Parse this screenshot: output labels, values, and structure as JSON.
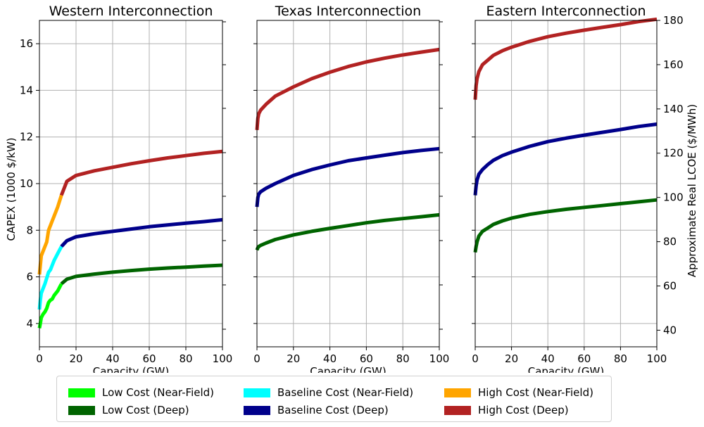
{
  "chart_data": [
    {
      "type": "line",
      "title": "Western Interconnection",
      "xlabel": "Capacity (GW)",
      "ylabel": "CAPEX (1000 $/kW)",
      "xlim": [
        0,
        100
      ],
      "ylim": [
        3,
        17
      ],
      "xticks": [
        "0",
        "20",
        "40",
        "60",
        "80",
        "100"
      ],
      "yticks": [
        "4",
        "6",
        "8",
        "10",
        "12",
        "14",
        "16"
      ],
      "grid": true,
      "series": [
        {
          "name": "Low Cost (Deep)",
          "color": "#006400",
          "x": [
            12,
            15,
            20,
            30,
            40,
            50,
            60,
            70,
            80,
            90,
            100
          ],
          "y": [
            5.7,
            5.9,
            6.02,
            6.12,
            6.2,
            6.27,
            6.33,
            6.38,
            6.42,
            6.46,
            6.5
          ]
        },
        {
          "name": "Baseline Cost (Deep)",
          "color": "#00008b",
          "x": [
            12,
            15,
            20,
            30,
            40,
            50,
            60,
            70,
            80,
            90,
            100
          ],
          "y": [
            7.3,
            7.55,
            7.72,
            7.85,
            7.95,
            8.05,
            8.15,
            8.23,
            8.3,
            8.37,
            8.45
          ]
        },
        {
          "name": "High Cost (Deep)",
          "color": "#b22222",
          "x": [
            12,
            15,
            20,
            30,
            40,
            50,
            60,
            70,
            80,
            90,
            100
          ],
          "y": [
            9.5,
            10.1,
            10.35,
            10.55,
            10.7,
            10.85,
            10.98,
            11.1,
            11.2,
            11.3,
            11.38
          ]
        },
        {
          "name": "Low Cost (Near-Field)",
          "color": "#00ff00",
          "x": [
            0,
            0.5,
            1,
            2,
            3,
            4,
            5,
            6,
            7,
            8,
            10,
            12
          ],
          "y": [
            3.8,
            4.0,
            4.25,
            4.4,
            4.5,
            4.65,
            4.9,
            5.0,
            5.05,
            5.2,
            5.4,
            5.7
          ]
        },
        {
          "name": "Baseline Cost (Near-Field)",
          "color": "#00ffff",
          "x": [
            0,
            0.5,
            1,
            2,
            3,
            4,
            5,
            6,
            7,
            8,
            10,
            12
          ],
          "y": [
            4.6,
            5.0,
            5.3,
            5.5,
            5.7,
            5.95,
            6.2,
            6.3,
            6.5,
            6.7,
            7.0,
            7.3
          ]
        },
        {
          "name": "High Cost (Near-Field)",
          "color": "#ffa500",
          "x": [
            0,
            0.5,
            1,
            2,
            3,
            4,
            5,
            6,
            7,
            8,
            10,
            12
          ],
          "y": [
            6.1,
            6.5,
            6.9,
            7.1,
            7.3,
            7.5,
            8.0,
            8.2,
            8.4,
            8.6,
            9.0,
            9.5
          ]
        }
      ]
    },
    {
      "type": "line",
      "title": "Texas Interconnection",
      "xlabel": "Capacity (GW)",
      "xlim": [
        0,
        100
      ],
      "ylim": [
        3,
        17
      ],
      "xticks": [
        "0",
        "20",
        "40",
        "60",
        "80",
        "100"
      ],
      "grid": true,
      "series": [
        {
          "name": "Low Cost (Deep)",
          "color": "#006400",
          "x": [
            0,
            0.5,
            1,
            2,
            5,
            10,
            20,
            30,
            40,
            50,
            60,
            70,
            80,
            90,
            100
          ],
          "y": [
            7.15,
            7.25,
            7.3,
            7.35,
            7.45,
            7.6,
            7.8,
            7.95,
            8.08,
            8.2,
            8.32,
            8.42,
            8.5,
            8.58,
            8.66
          ]
        },
        {
          "name": "Baseline Cost (Deep)",
          "color": "#00008b",
          "x": [
            0,
            0.5,
            1,
            2,
            5,
            10,
            20,
            30,
            40,
            50,
            60,
            70,
            80,
            90,
            100
          ],
          "y": [
            9.0,
            9.4,
            9.55,
            9.65,
            9.8,
            10.0,
            10.35,
            10.6,
            10.8,
            10.98,
            11.1,
            11.22,
            11.33,
            11.42,
            11.5
          ]
        },
        {
          "name": "High Cost (Deep)",
          "color": "#b22222",
          "x": [
            0,
            0.5,
            1,
            2,
            5,
            10,
            20,
            30,
            40,
            50,
            60,
            70,
            80,
            90,
            100
          ],
          "y": [
            12.3,
            12.8,
            13.0,
            13.15,
            13.4,
            13.75,
            14.15,
            14.5,
            14.78,
            15.02,
            15.22,
            15.38,
            15.52,
            15.64,
            15.75
          ]
        }
      ]
    },
    {
      "type": "line",
      "title": "Eastern Interconnection",
      "xlabel": "Capacity (GW)",
      "y2label": "Approximate Real LCOE ($/MWh)",
      "xlim": [
        0,
        100
      ],
      "ylim": [
        3,
        17
      ],
      "y2lim": [
        32.5,
        180
      ],
      "xticks": [
        "0",
        "20",
        "40",
        "60",
        "80",
        "100"
      ],
      "y2ticks": [
        "40",
        "60",
        "80",
        "100",
        "120",
        "140",
        "160",
        "180"
      ],
      "grid": true,
      "series": [
        {
          "name": "Low Cost (Deep)",
          "color": "#006400",
          "x": [
            0,
            0.5,
            1,
            2,
            4,
            7,
            10,
            15,
            20,
            30,
            40,
            50,
            60,
            70,
            80,
            90,
            100
          ],
          "y": [
            7.05,
            7.3,
            7.5,
            7.75,
            7.95,
            8.1,
            8.25,
            8.4,
            8.52,
            8.68,
            8.8,
            8.9,
            8.98,
            9.06,
            9.14,
            9.22,
            9.3
          ]
        },
        {
          "name": "Baseline Cost (Deep)",
          "color": "#00008b",
          "x": [
            0,
            0.5,
            1,
            2,
            4,
            7,
            10,
            15,
            20,
            30,
            40,
            50,
            60,
            70,
            80,
            90,
            100
          ],
          "y": [
            9.5,
            9.9,
            10.15,
            10.4,
            10.6,
            10.82,
            11.0,
            11.2,
            11.35,
            11.6,
            11.8,
            11.95,
            12.08,
            12.2,
            12.32,
            12.45,
            12.55
          ]
        },
        {
          "name": "High Cost (Deep)",
          "color": "#b22222",
          "x": [
            0,
            0.5,
            1,
            2,
            4,
            7,
            10,
            15,
            20,
            30,
            40,
            50,
            60,
            70,
            80,
            90,
            100
          ],
          "y": [
            13.6,
            14.2,
            14.5,
            14.8,
            15.1,
            15.3,
            15.5,
            15.7,
            15.85,
            16.1,
            16.3,
            16.45,
            16.58,
            16.7,
            16.82,
            16.95,
            17.05
          ]
        }
      ]
    }
  ],
  "legend": {
    "columns": [
      [
        {
          "label": "Low Cost (Near-Field)",
          "color": "#00ff00"
        },
        {
          "label": "Low Cost (Deep)",
          "color": "#006400"
        }
      ],
      [
        {
          "label": "Baseline Cost (Near-Field)",
          "color": "#00ffff"
        },
        {
          "label": "Baseline Cost (Deep)",
          "color": "#00008b"
        }
      ],
      [
        {
          "label": "High Cost (Near-Field)",
          "color": "#ffa500"
        },
        {
          "label": "High Cost (Deep)",
          "color": "#b22222"
        }
      ]
    ]
  }
}
